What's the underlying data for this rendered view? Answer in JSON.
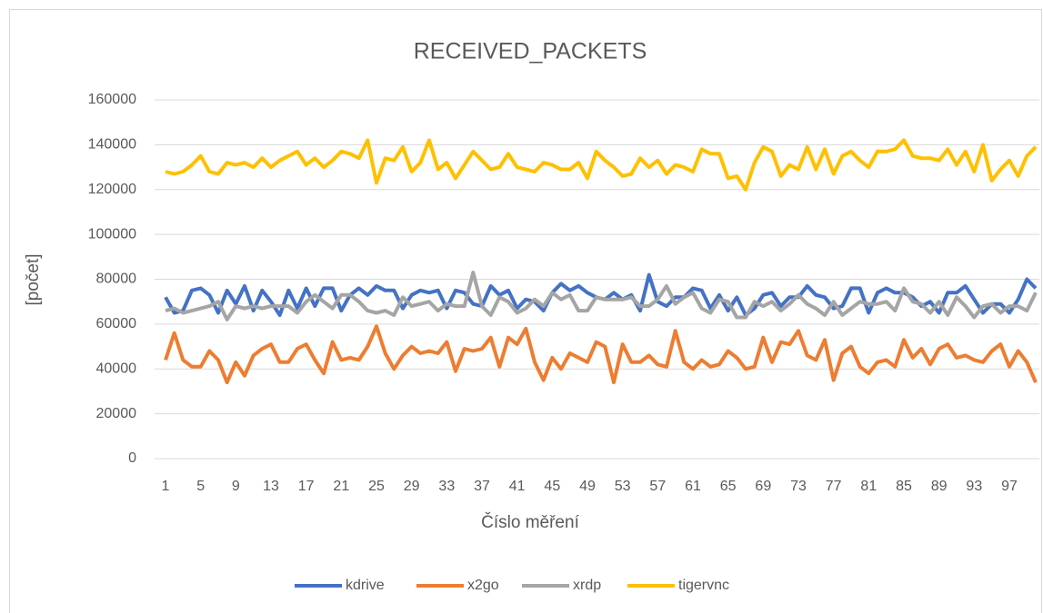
{
  "chart_data": {
    "type": "line",
    "title": "RECEIVED_PACKETS",
    "xlabel": "Číslo měření",
    "ylabel": "[počet]",
    "categories": [
      1,
      null,
      null,
      null,
      5,
      null,
      null,
      null,
      9,
      null,
      null,
      null,
      13,
      null,
      null,
      null,
      17,
      null,
      null,
      null,
      21,
      null,
      null,
      null,
      25,
      null,
      null,
      null,
      29,
      null,
      null,
      null,
      33,
      null,
      null,
      null,
      37,
      null,
      null,
      null,
      41,
      null,
      null,
      null,
      45,
      null,
      null,
      null,
      49,
      null,
      null,
      null,
      53,
      null,
      null,
      null,
      57,
      null,
      null,
      null,
      61,
      null,
      null,
      null,
      65,
      null,
      null,
      null,
      69,
      null,
      null,
      null,
      73,
      null,
      null,
      null,
      77,
      null,
      null,
      null,
      81,
      null,
      null,
      null,
      85,
      null,
      null,
      null,
      89,
      null,
      null,
      null,
      93,
      null,
      null,
      null,
      97,
      null,
      null,
      null
    ],
    "ylim": [
      0,
      160000
    ],
    "yticks": [
      0,
      20000,
      40000,
      60000,
      80000,
      100000,
      120000,
      140000,
      160000
    ],
    "grid": true,
    "legend": "bottom",
    "series": [
      {
        "name": "kdrive",
        "color": "#4472c4",
        "values": [
          72000,
          65000,
          66000,
          75000,
          76000,
          73000,
          65000,
          75000,
          69000,
          77000,
          66000,
          75000,
          70000,
          64000,
          75000,
          67000,
          76000,
          68000,
          76000,
          76000,
          66000,
          73000,
          76000,
          73000,
          77000,
          75000,
          75000,
          67000,
          73000,
          75000,
          74000,
          75000,
          67000,
          75000,
          74000,
          69000,
          68000,
          77000,
          73000,
          75000,
          67000,
          71000,
          70000,
          66000,
          74000,
          78000,
          75000,
          77000,
          74000,
          72000,
          71000,
          74000,
          71000,
          73000,
          66000,
          82000,
          70000,
          68000,
          72000,
          72000,
          76000,
          75000,
          67000,
          73000,
          66000,
          72000,
          64000,
          67000,
          73000,
          74000,
          68000,
          72000,
          72000,
          77000,
          73000,
          72000,
          67000,
          68000,
          76000,
          76000,
          65000,
          74000,
          76000,
          74000,
          74000,
          72000,
          68000,
          70000,
          65000,
          74000,
          74000,
          77000,
          71000,
          65000,
          69000,
          69000,
          65000,
          71000,
          80000,
          76000
        ]
      },
      {
        "name": "x2go",
        "color": "#ed7d31",
        "values": [
          44000,
          56000,
          44000,
          41000,
          41000,
          48000,
          44000,
          34000,
          43000,
          37000,
          46000,
          49000,
          51000,
          43000,
          43000,
          49000,
          51000,
          44000,
          38000,
          52000,
          44000,
          45000,
          44000,
          50000,
          59000,
          47000,
          40000,
          46000,
          50000,
          47000,
          48000,
          47000,
          52000,
          39000,
          49000,
          48000,
          49000,
          54000,
          41000,
          54000,
          51000,
          58000,
          43000,
          35000,
          45000,
          40000,
          47000,
          45000,
          43000,
          52000,
          50000,
          34000,
          51000,
          43000,
          43000,
          46000,
          42000,
          41000,
          57000,
          43000,
          40000,
          44000,
          41000,
          42000,
          48000,
          45000,
          40000,
          41000,
          54000,
          43000,
          52000,
          51000,
          57000,
          46000,
          44000,
          53000,
          35000,
          47000,
          50000,
          41000,
          38000,
          43000,
          44000,
          41000,
          53000,
          45000,
          49000,
          42000,
          49000,
          51000,
          45000,
          46000,
          44000,
          43000,
          48000,
          51000,
          41000,
          48000,
          43000,
          34000
        ]
      },
      {
        "name": "xrdp",
        "color": "#a5a5a5",
        "values": [
          66000,
          67000,
          65000,
          66000,
          67000,
          68000,
          70000,
          62000,
          68000,
          67000,
          68000,
          67000,
          68000,
          68000,
          68000,
          65000,
          70000,
          73000,
          70000,
          67000,
          73000,
          73000,
          70000,
          66000,
          65000,
          66000,
          64000,
          72000,
          68000,
          69000,
          70000,
          66000,
          69000,
          68000,
          68000,
          83000,
          68000,
          64000,
          72000,
          70000,
          65000,
          67000,
          71000,
          68000,
          74000,
          71000,
          73000,
          66000,
          66000,
          72000,
          71000,
          71000,
          71000,
          72000,
          68000,
          68000,
          71000,
          77000,
          69000,
          72000,
          74000,
          67000,
          65000,
          71000,
          70000,
          63000,
          63000,
          70000,
          68000,
          70000,
          66000,
          69000,
          73000,
          69000,
          67000,
          64000,
          70000,
          64000,
          67000,
          70000,
          69000,
          69000,
          70000,
          66000,
          76000,
          70000,
          69000,
          65000,
          70000,
          64000,
          72000,
          68000,
          63000,
          68000,
          69000,
          65000,
          68000,
          68000,
          66000,
          74000
        ]
      },
      {
        "name": "tigervnc",
        "color": "#ffc000",
        "values": [
          128000,
          127000,
          128000,
          131000,
          135000,
          128000,
          127000,
          132000,
          131000,
          132000,
          130000,
          134000,
          130000,
          133000,
          135000,
          137000,
          131000,
          134000,
          130000,
          133000,
          137000,
          136000,
          134000,
          142000,
          123000,
          134000,
          133000,
          139000,
          128000,
          132000,
          142000,
          129000,
          132000,
          125000,
          131000,
          137000,
          133000,
          129000,
          130000,
          136000,
          130000,
          129000,
          128000,
          132000,
          131000,
          129000,
          129000,
          132000,
          125000,
          137000,
          133000,
          130000,
          126000,
          127000,
          134000,
          130000,
          133000,
          127000,
          131000,
          130000,
          128000,
          138000,
          136000,
          136000,
          125000,
          126000,
          120000,
          132000,
          139000,
          137000,
          126000,
          131000,
          129000,
          139000,
          129000,
          138000,
          127000,
          135000,
          137000,
          133000,
          130000,
          137000,
          137000,
          138000,
          142000,
          135000,
          134000,
          134000,
          133000,
          138000,
          131000,
          137000,
          128000,
          140000,
          124000,
          129000,
          133000,
          126000,
          135000,
          139000
        ]
      }
    ]
  }
}
